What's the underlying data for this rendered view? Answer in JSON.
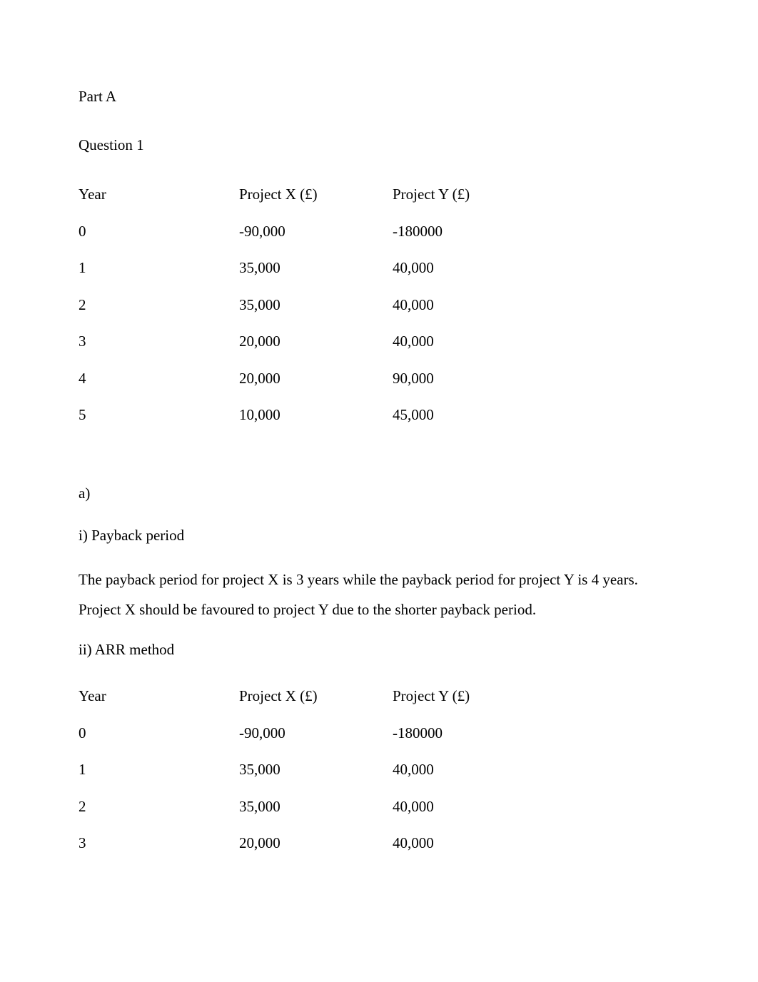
{
  "partA": {
    "heading": "Part A",
    "question": "Question 1",
    "table1": {
      "headers": {
        "year": "Year",
        "x": "Project X (£)",
        "y": "Project Y (£)"
      },
      "rows": [
        {
          "year": "0",
          "x": "-90,000",
          "y": "-180000"
        },
        {
          "year": "1",
          "x": "35,000",
          "y": "40,000"
        },
        {
          "year": "2",
          "x": "35,000",
          "y": "40,000"
        },
        {
          "year": "3",
          "x": "20,000",
          "y": "40,000"
        },
        {
          "year": "4",
          "x": "20,000",
          "y": "90,000"
        },
        {
          "year": "5",
          "x": "10,000",
          "y": "45,000"
        }
      ]
    },
    "sectionA": {
      "label": "a)",
      "item1": {
        "label": "i) Payback period",
        "text": "The payback period for project X is 3 years while the payback period for project Y is 4 years. Project X should be favoured to project Y due to the shorter payback period."
      },
      "item2": {
        "label": "ii) ARR method"
      }
    },
    "table2": {
      "headers": {
        "year": "Year",
        "x": "Project X (£)",
        "y": "Project Y (£)"
      },
      "rows": [
        {
          "year": "0",
          "x": "-90,000",
          "y": "-180000"
        },
        {
          "year": "1",
          "x": "35,000",
          "y": "40,000"
        },
        {
          "year": "2",
          "x": "35,000",
          "y": "40,000"
        },
        {
          "year": "3",
          "x": "20,000",
          "y": "40,000"
        }
      ]
    }
  },
  "colors": {
    "background": "#ffffff",
    "text": "#000000"
  },
  "typography": {
    "fontFamily": "Times New Roman",
    "bodySize": 21
  }
}
